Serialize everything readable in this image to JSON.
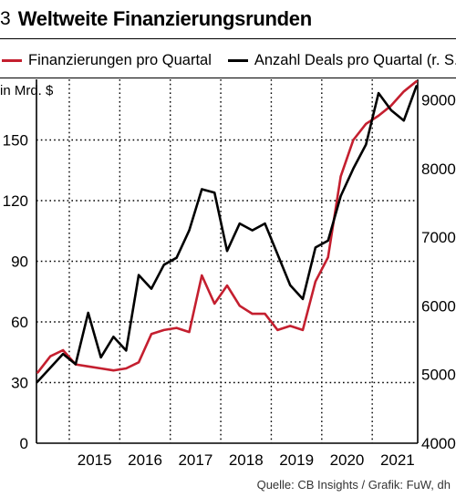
{
  "figure": {
    "number": "3",
    "title": "Weltweite Finanzierungsrunden",
    "source": "Quelle: CB Insights / Grafik: FuW, dh"
  },
  "chart_data": {
    "type": "line",
    "title": "Weltweite Finanzierungsrunden",
    "xlabel": "",
    "ylabel": "in Mrd. $",
    "y2label": "",
    "categories": [
      "2015",
      "2016",
      "2017",
      "2018",
      "2019",
      "2020",
      "2021"
    ],
    "x_range": [
      2014.35,
      2021.9
    ],
    "ylim": [
      0,
      180
    ],
    "y2lim": [
      4000,
      9300
    ],
    "yticks": [
      0,
      30,
      60,
      90,
      120,
      150
    ],
    "y2ticks": [
      4000,
      5000,
      6000,
      7000,
      8000,
      9000
    ],
    "y_tick_labels": [
      "0",
      "30",
      "60",
      "90",
      "120",
      "150"
    ],
    "y2_tick_labels": [
      "4000",
      "5000",
      "6000",
      "7000",
      "8000",
      "9000"
    ],
    "grid": true,
    "legend_position": "top-left",
    "colors": {
      "funding": "#c41f2f",
      "deals": "#000000"
    },
    "series": [
      {
        "name": "Finanzierungen pro Quartal",
        "axis": "left",
        "color": "#c41f2f",
        "x": [
          2014.375,
          2014.625,
          2014.875,
          2015.125,
          2015.375,
          2015.625,
          2015.875,
          2016.125,
          2016.375,
          2016.625,
          2016.875,
          2017.125,
          2017.375,
          2017.625,
          2017.875,
          2018.125,
          2018.375,
          2018.625,
          2018.875,
          2019.125,
          2019.375,
          2019.625,
          2019.875,
          2020.125,
          2020.375,
          2020.625,
          2020.875,
          2021.125,
          2021.375,
          2021.625,
          2021.875
        ],
        "y": [
          35,
          43,
          46,
          39,
          38,
          37,
          36,
          37,
          40,
          54,
          56,
          57,
          55,
          83,
          69,
          78,
          68,
          64,
          64,
          56,
          58,
          56,
          80,
          92,
          132,
          150,
          158,
          162,
          167,
          174,
          179
        ]
      },
      {
        "name": "Anzahl Deals pro Quartal (r. S.)",
        "axis": "right",
        "color": "#000000",
        "x": [
          2014.375,
          2014.625,
          2014.875,
          2015.125,
          2015.375,
          2015.625,
          2015.875,
          2016.125,
          2016.375,
          2016.625,
          2016.875,
          2017.125,
          2017.375,
          2017.625,
          2017.875,
          2018.125,
          2018.375,
          2018.625,
          2018.875,
          2019.125,
          2019.375,
          2019.625,
          2019.875,
          2020.125,
          2020.375,
          2020.625,
          2020.875,
          2021.125,
          2021.375,
          2021.625,
          2021.875
        ],
        "y": [
          4900,
          5100,
          5300,
          5150,
          5900,
          5250,
          5550,
          5350,
          6450,
          6250,
          6600,
          6700,
          7100,
          7700,
          7650,
          6800,
          7200,
          7100,
          7200,
          6750,
          6300,
          6100,
          6850,
          6950,
          7600,
          8000,
          8350,
          9100,
          8850,
          8700,
          9200
        ]
      }
    ]
  }
}
